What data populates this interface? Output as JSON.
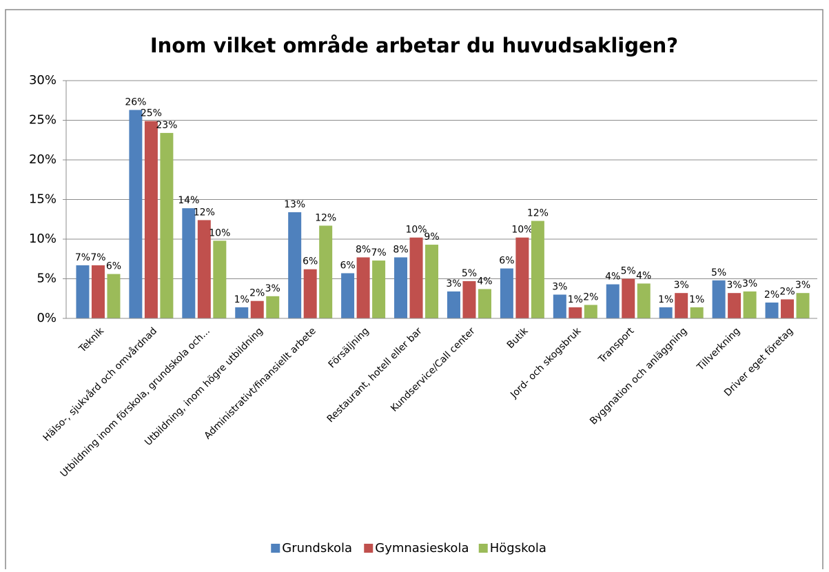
{
  "chart_data": {
    "type": "bar",
    "title": "Inom vilket område arbetar du huvudsakligen?",
    "categories": [
      "Teknik",
      "Hälso-, sjukvård och omvårdnad",
      "Utbildning inom förskola, grundskola och...",
      "Utbildning, inom högre utbildning",
      "Administrativt/finansiellt arbete",
      "Försäljning",
      "Restaurant, hotell eller bar",
      "Kundservice/Call center",
      "Butik",
      "Jord- och skogsbruk",
      "Transport",
      "Byggnation och anläggning",
      "Tillverkning",
      "Driver eget företag"
    ],
    "series": [
      {
        "name": "Grundskola",
        "color": "#4f81bd",
        "values": [
          6.7,
          26.3,
          13.9,
          1.4,
          13.4,
          5.7,
          7.7,
          3.4,
          6.3,
          3.0,
          4.3,
          1.4,
          4.8,
          2.0
        ],
        "value_labels": [
          "7%",
          "26%",
          "14%",
          "1%",
          "13%",
          "6%",
          "8%",
          "3%",
          "6%",
          "3%",
          "4%",
          "1%",
          "5%",
          "2%"
        ]
      },
      {
        "name": "Gymnasieskola",
        "color": "#c0504d",
        "values": [
          6.7,
          24.9,
          12.4,
          2.2,
          6.2,
          7.7,
          10.2,
          4.7,
          10.2,
          1.4,
          5.0,
          3.2,
          3.2,
          2.4
        ],
        "value_labels": [
          "7%",
          "25%",
          "12%",
          "2%",
          "6%",
          "8%",
          "10%",
          "5%",
          "10%",
          "1%",
          "5%",
          "3%",
          "3%",
          "2%"
        ]
      },
      {
        "name": "Högskola",
        "color": "#9bbb59",
        "values": [
          5.6,
          23.4,
          9.8,
          2.8,
          11.7,
          7.3,
          9.3,
          3.7,
          12.3,
          1.7,
          4.4,
          1.4,
          3.4,
          3.2
        ],
        "value_labels": [
          "6%",
          "23%",
          "10%",
          "3%",
          "12%",
          "7%",
          "9%",
          "4%",
          "12%",
          "2%",
          "4%",
          "1%",
          "3%",
          "3%"
        ]
      }
    ],
    "ylim": [
      0,
      30
    ],
    "yticks": [
      {
        "value": 0,
        "label": "0%"
      },
      {
        "value": 5,
        "label": "5%"
      },
      {
        "value": 10,
        "label": "10%"
      },
      {
        "value": 15,
        "label": "15%"
      },
      {
        "value": 20,
        "label": "20%"
      },
      {
        "value": 25,
        "label": "25%"
      },
      {
        "value": 30,
        "label": "30%"
      }
    ],
    "grid": true,
    "legend": "bottom"
  }
}
